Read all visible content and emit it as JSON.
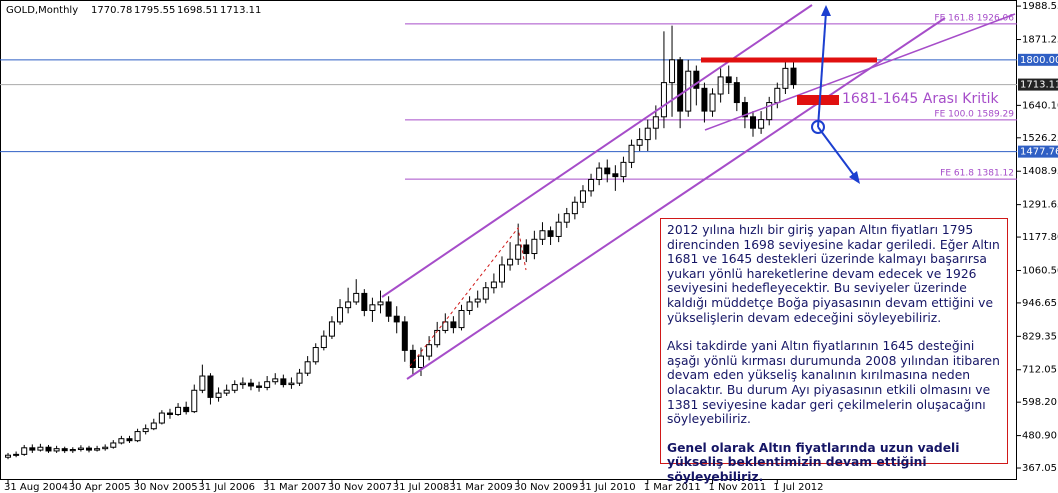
{
  "chart_data": {
    "type": "candlestick",
    "symbol": "GOLD,Monthly",
    "open": [
      405,
      412,
      415,
      438,
      430,
      440,
      427,
      435,
      428,
      432,
      437,
      430,
      435,
      440,
      455,
      470,
      463,
      495,
      505,
      525,
      560,
      555,
      580,
      565,
      640,
      690,
      615,
      630,
      640,
      660,
      665,
      655,
      650,
      670,
      680,
      660,
      665,
      700,
      740,
      790,
      830,
      880,
      930,
      950,
      980,
      920,
      940,
      950,
      900,
      880,
      780,
      720,
      760,
      800,
      850,
      880,
      860,
      920,
      950,
      960,
      1000,
      1020,
      1080,
      1100,
      1150,
      1120,
      1170,
      1200,
      1180,
      1230,
      1260,
      1300,
      1340,
      1380,
      1420,
      1400,
      1390,
      1440,
      1500,
      1520,
      1560,
      1600,
      1720,
      1800,
      1620,
      1760,
      1700,
      1620,
      1680,
      1740,
      1720,
      1650,
      1600,
      1560,
      1590,
      1650,
      1700,
      1770.78
    ],
    "high": [
      420,
      425,
      448,
      450,
      452,
      448,
      445,
      442,
      440,
      447,
      445,
      445,
      450,
      465,
      480,
      480,
      505,
      520,
      540,
      570,
      575,
      595,
      600,
      660,
      730,
      700,
      650,
      660,
      675,
      685,
      680,
      670,
      690,
      700,
      695,
      685,
      715,
      760,
      805,
      850,
      900,
      960,
      1000,
      1030,
      995,
      965,
      990,
      970,
      935,
      900,
      800,
      790,
      830,
      880,
      910,
      900,
      940,
      970,
      990,
      1020,
      1050,
      1110,
      1160,
      1225,
      1170,
      1200,
      1230,
      1215,
      1260,
      1280,
      1320,
      1360,
      1400,
      1440,
      1450,
      1430,
      1460,
      1520,
      1560,
      1590,
      1640,
      1900,
      1920,
      1810,
      1800,
      1780,
      1720,
      1700,
      1770,
      1780,
      1740,
      1670,
      1620,
      1620,
      1670,
      1720,
      1800,
      1795.55
    ],
    "low": [
      398,
      405,
      410,
      420,
      425,
      420,
      420,
      420,
      420,
      425,
      422,
      425,
      428,
      435,
      450,
      455,
      458,
      485,
      500,
      520,
      540,
      550,
      555,
      560,
      630,
      590,
      600,
      620,
      630,
      645,
      640,
      635,
      640,
      660,
      650,
      645,
      655,
      690,
      730,
      780,
      820,
      870,
      910,
      940,
      900,
      880,
      910,
      880,
      840,
      740,
      690,
      690,
      745,
      790,
      840,
      840,
      850,
      905,
      930,
      945,
      980,
      1000,
      1060,
      1080,
      1090,
      1100,
      1150,
      1150,
      1160,
      1210,
      1240,
      1280,
      1320,
      1360,
      1370,
      1340,
      1370,
      1420,
      1480,
      1480,
      1520,
      1560,
      1600,
      1560,
      1600,
      1640,
      1580,
      1600,
      1650,
      1680,
      1620,
      1560,
      1530,
      1540,
      1570,
      1630,
      1680,
      1698.51
    ],
    "close": [
      412,
      415,
      438,
      430,
      440,
      427,
      435,
      428,
      432,
      437,
      430,
      435,
      440,
      455,
      470,
      463,
      495,
      505,
      525,
      560,
      555,
      580,
      565,
      640,
      690,
      615,
      630,
      640,
      660,
      665,
      655,
      650,
      670,
      680,
      660,
      665,
      700,
      740,
      790,
      830,
      880,
      930,
      950,
      980,
      920,
      940,
      950,
      900,
      880,
      780,
      720,
      760,
      800,
      850,
      880,
      860,
      920,
      950,
      960,
      1000,
      1020,
      1080,
      1100,
      1150,
      1120,
      1170,
      1200,
      1180,
      1230,
      1260,
      1300,
      1340,
      1380,
      1420,
      1400,
      1390,
      1440,
      1500,
      1520,
      1560,
      1600,
      1720,
      1800,
      1620,
      1760,
      1700,
      1620,
      1680,
      1740,
      1720,
      1650,
      1600,
      1560,
      1590,
      1650,
      1700,
      1770,
      1713.11
    ],
    "xlim": [
      -0.99,
      124.6
    ],
    "xticks": [
      {
        "value": 0,
        "label": "31 Aug 2004"
      },
      {
        "value": 8,
        "label": "30 Apr 2005"
      },
      {
        "value": 16,
        "label": "30 Nov 2005"
      },
      {
        "value": 24,
        "label": "31 Jul 2006"
      },
      {
        "value": 32,
        "label": "31 Mar 2007"
      },
      {
        "value": 40,
        "label": "30 Nov 2007"
      },
      {
        "value": 48,
        "label": "31 Jul 2008"
      },
      {
        "value": 55,
        "label": "31 Mar 2009"
      },
      {
        "value": 63,
        "label": "30 Nov 2009"
      },
      {
        "value": 71,
        "label": "31 Jul 2010"
      },
      {
        "value": 79,
        "label": "1 Mar 2011"
      },
      {
        "value": 87,
        "label": "1 Nov 2011"
      },
      {
        "value": 95,
        "label": "1 Jul 2012"
      }
    ],
    "ylim": [
      325,
      2010
    ],
    "yticks": [
      1988.55,
      1871.25,
      {
        "value": 1640.1,
        "label": "1640.10"
      },
      1526.25,
      1408.95,
      1291.65,
      {
        "value": 1177.8,
        "label": "1177.80"
      },
      {
        "value": 1060.5,
        "label": "1060.50"
      },
      946.65,
      829.35,
      {
        "value": 712.05,
        "label": "712.05"
      },
      {
        "value": 598.2,
        "label": "598.20"
      },
      {
        "value": 480.9,
        "label": "480.90"
      },
      367.05
    ],
    "hlines": [
      {
        "value": 1800,
        "label": "1800.00",
        "color": "#2f5fc4"
      },
      {
        "value": 1477.76,
        "label": "1477.76",
        "color": "#2f5fc4"
      }
    ],
    "fib_lines": [
      {
        "value": 1926.06,
        "label": "FE 161.8 1926.06"
      },
      {
        "value": 1589.29,
        "label": "FE 100.0 1589.29"
      },
      {
        "value": 1381.12,
        "label": "FE 61.8 1381.12"
      }
    ],
    "fib_color": "#a64dc9",
    "zone_label": "1681-1645 Arası Kritik",
    "commentary": [
      "2012 yılına hızlı bir giriş yapan Altın fiyatları 1795 direncinden 1698 seviyesine kadar geriledi. Eğer Altın 1681 ve 1645 destekleri üzerinde kalmayı başarırsa yukarı yönlü hareketlerine devam edecek ve 1926 seviyesini hedefleyecektir. Bu seviyeler üzerinde kaldığı müddetçe Boğa piyasasının devam ettiğini ve yükselişlerin devam edeceğini söyleyebiliriz.",
      "Aksi takdirde yani Altın fiyatlarının 1645 desteğini aşağı yönlü kırması durumunda 2008 yılından itibaren devam eden yükseliş kanalının kırılmasına neden olacaktır. Bu durum Ayı piyasasının etkili olmasını ve 1381 seviyesine kadar geri çekilmelerin oluşacağını söyleyebiliriz.",
      "Genel  olarak Altın fiyatlarında uzun vadeli yükseliş beklentimizin devam ettiğini söyleyebiliriz."
    ]
  }
}
